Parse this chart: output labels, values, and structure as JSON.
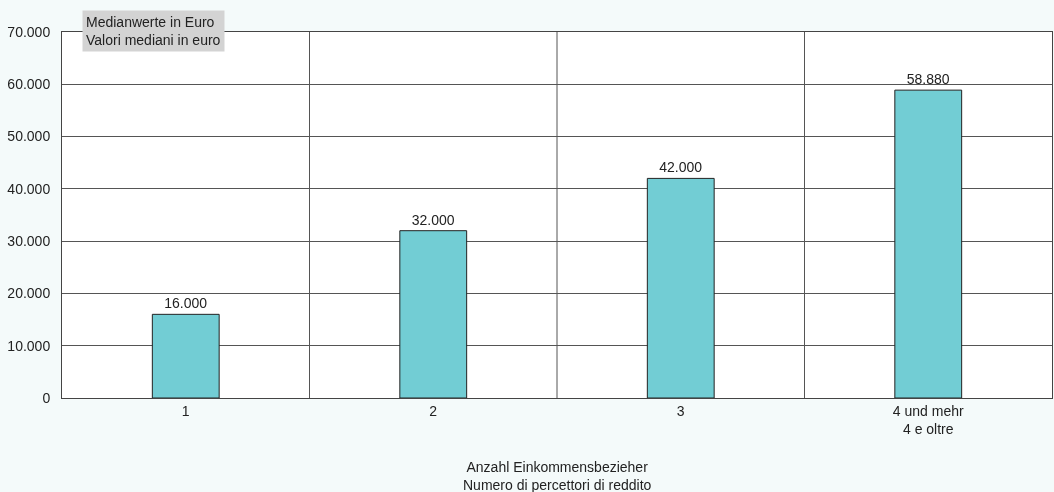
{
  "chart_data": {
    "type": "bar",
    "ylabel": "Medianwerte in Euro\nValori mediani in euro",
    "xlabel": "Anzahl Einkommensbezieher\nNumero di percettori di reddito",
    "categories": [
      "1",
      "2",
      "3",
      "4 und mehr\n4 e oltre"
    ],
    "values": [
      16000,
      32000,
      42000,
      58880
    ],
    "value_labels": [
      "16.000",
      "32.000",
      "42.000",
      "58.880"
    ],
    "color": "#72cdd4",
    "ylim": [
      0,
      70000
    ],
    "yticks": [
      {
        "value": 0,
        "label": "0"
      },
      {
        "value": 10000,
        "label": "10.000"
      },
      {
        "value": 20000,
        "label": "20.000"
      },
      {
        "value": 30000,
        "label": "30.000"
      },
      {
        "value": 40000,
        "label": "40.000"
      },
      {
        "value": 50000,
        "label": "50.000"
      },
      {
        "value": 60000,
        "label": "60.000"
      },
      {
        "value": 70000,
        "label": "70.000"
      }
    ],
    "grid": true
  }
}
